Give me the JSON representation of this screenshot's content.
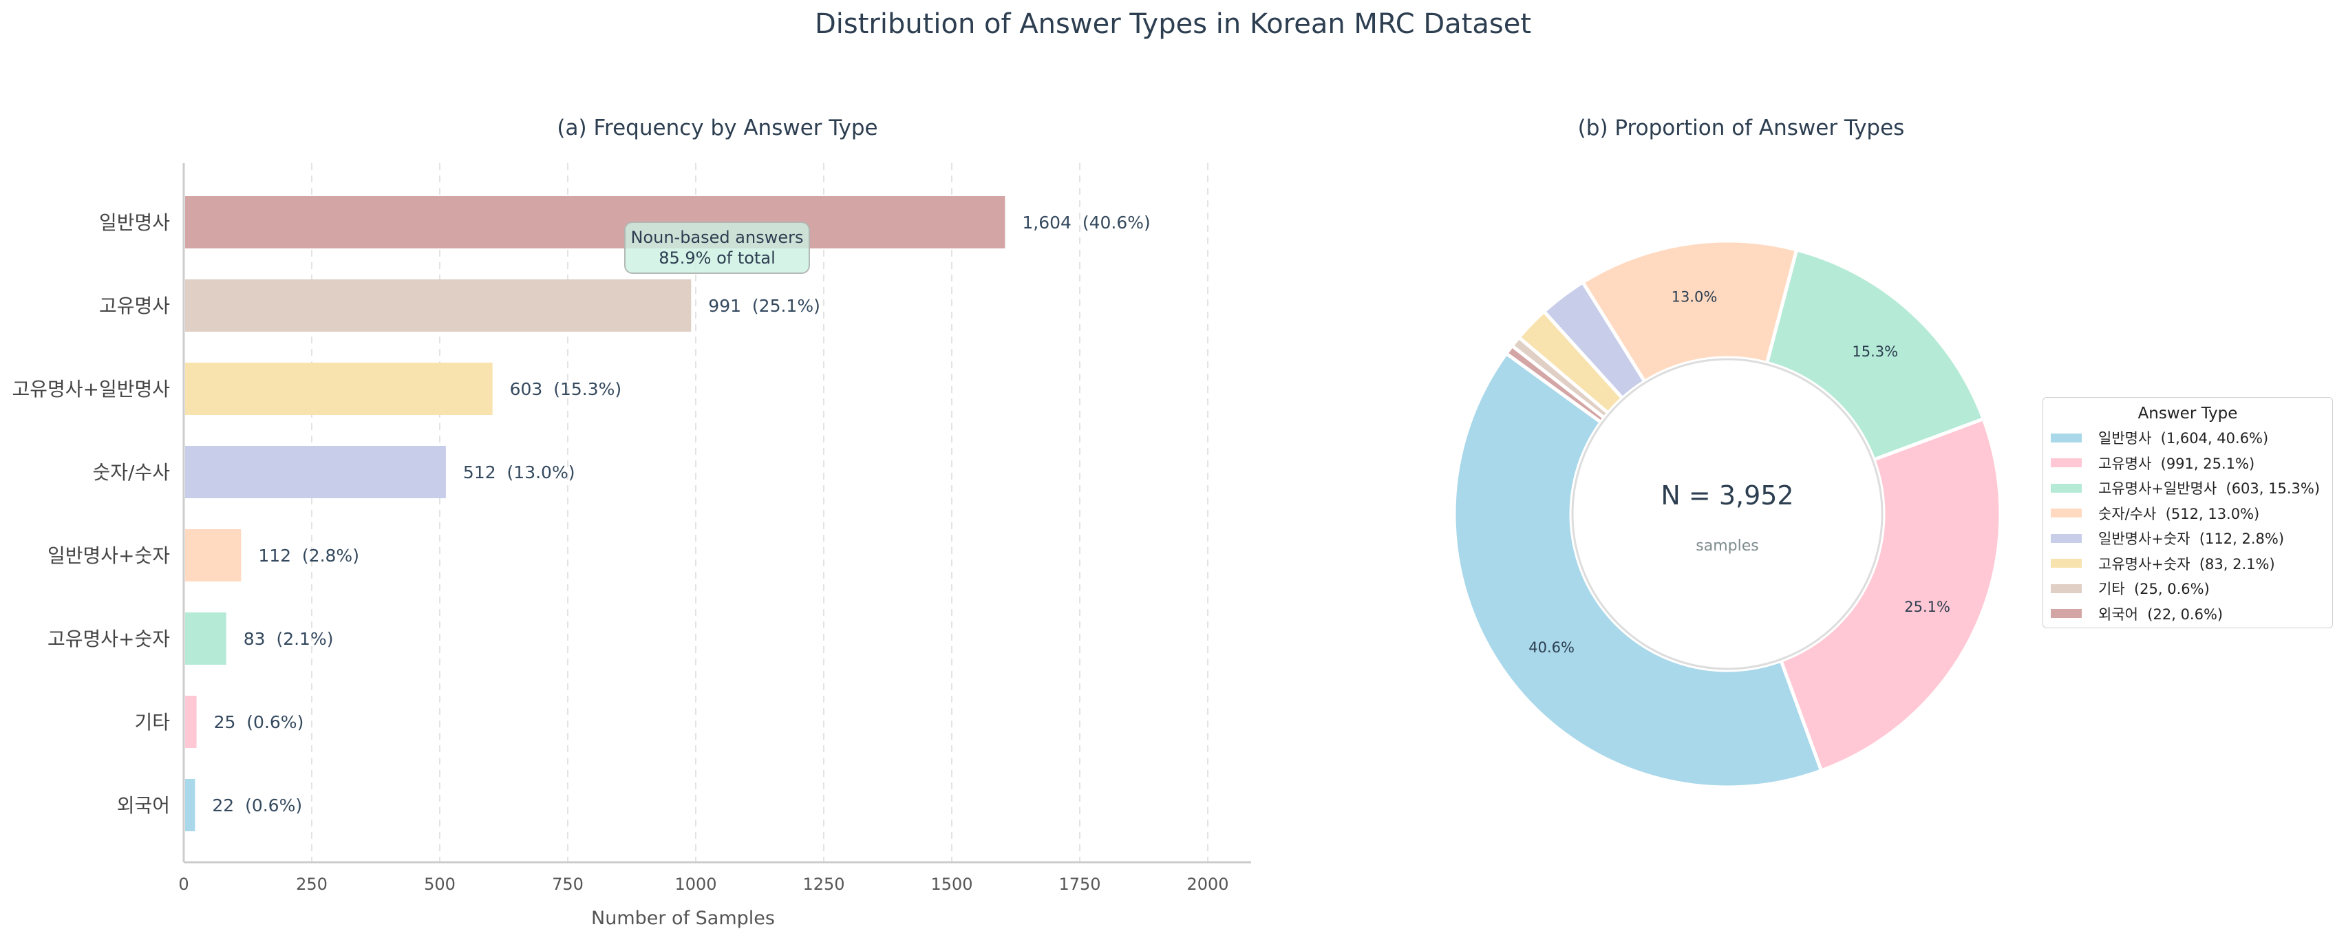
{
  "figure": {
    "title": "Distribution of Answer Types in Korean MRC Dataset"
  },
  "bar_panel": {
    "title": "(a) Frequency by Answer Type",
    "xlabel": "Number of Samples",
    "xticks": [
      "0",
      "250",
      "500",
      "750",
      "1000",
      "1250",
      "1500",
      "1750",
      "2000"
    ],
    "bars": [
      {
        "label": "일반명사",
        "value": 1604,
        "text": "1,604  (40.6%)",
        "color": "#D4A5A5"
      },
      {
        "label": "고유명사",
        "value": 991,
        "text": "991  (25.1%)",
        "color": "#E0CFC4"
      },
      {
        "label": "고유명사+일반명사",
        "value": 603,
        "text": "603  (15.3%)",
        "color": "#F8E2AE"
      },
      {
        "label": "숫자/수사",
        "value": 512,
        "text": "512  (13.0%)",
        "color": "#C8CEEA"
      },
      {
        "label": "일반명사+숫자",
        "value": 112,
        "text": "112  (2.8%)",
        "color": "#FFDAC1"
      },
      {
        "label": "고유명사+숫자",
        "value": 83,
        "text": "83  (2.1%)",
        "color": "#B5EAD7"
      },
      {
        "label": "기타",
        "value": 25,
        "text": "25  (0.6%)",
        "color": "#FFC8D4"
      },
      {
        "label": "외국어",
        "value": 22,
        "text": "22  (0.6%)",
        "color": "#A8D8EA"
      }
    ],
    "annotation": {
      "line1": "Noun-based answers",
      "line2": "85.9% of total"
    }
  },
  "pie_panel": {
    "title": "(b) Proportion of Answer Types",
    "center_value": "N = 3,952",
    "center_label": "samples",
    "legend_title": "Answer Type",
    "slices": [
      {
        "label": "일반명사",
        "value": 1604,
        "pct": "40.6%",
        "legend": "일반명사  (1,604, 40.6%)",
        "color": "#A8D8EA"
      },
      {
        "label": "고유명사",
        "value": 991,
        "pct": "25.1%",
        "legend": "고유명사  (991, 25.1%)",
        "color": "#FFC8D4"
      },
      {
        "label": "고유명사+일반명사",
        "value": 603,
        "pct": "15.3%",
        "legend": "고유명사+일반명사  (603, 15.3%)",
        "color": "#B5EAD7"
      },
      {
        "label": "숫자/수사",
        "value": 512,
        "pct": "13.0%",
        "legend": "숫자/수사  (512, 13.0%)",
        "color": "#FFDAC1"
      },
      {
        "label": "일반명사+숫자",
        "value": 112,
        "pct": "",
        "legend": "일반명사+숫자  (112, 2.8%)",
        "color": "#C8CEEA"
      },
      {
        "label": "고유명사+숫자",
        "value": 83,
        "pct": "",
        "legend": "고유명사+숫자  (83, 2.1%)",
        "color": "#F8E2AE"
      },
      {
        "label": "기타",
        "value": 25,
        "pct": "",
        "legend": "기타  (25, 0.6%)",
        "color": "#E0CFC4"
      },
      {
        "label": "외국어",
        "value": 22,
        "pct": "",
        "legend": "외국어  (22, 0.6%)",
        "color": "#D4A5A5"
      }
    ]
  },
  "chart_data": [
    {
      "type": "bar",
      "orientation": "horizontal",
      "title": "(a) Frequency by Answer Type",
      "xlabel": "Number of Samples",
      "ylabel": "",
      "categories": [
        "일반명사",
        "고유명사",
        "고유명사+일반명사",
        "숫자/수사",
        "일반명사+숫자",
        "고유명사+숫자",
        "기타",
        "외국어"
      ],
      "values": [
        1604,
        991,
        603,
        512,
        112,
        83,
        25,
        22
      ],
      "percentages": [
        40.6,
        25.1,
        15.3,
        13.0,
        2.8,
        2.1,
        0.6,
        0.6
      ],
      "xlim": [
        0,
        2085
      ],
      "xticks": [
        0,
        250,
        500,
        750,
        1000,
        1250,
        1500,
        1750,
        2000
      ],
      "grid": "x, dashed",
      "annotations": [
        "Noun-based answers 85.9% of total"
      ]
    },
    {
      "type": "pie",
      "variant": "donut",
      "title": "(b) Proportion of Answer Types",
      "categories": [
        "일반명사",
        "고유명사",
        "고유명사+일반명사",
        "숫자/수사",
        "일반명사+숫자",
        "고유명사+숫자",
        "기타",
        "외국어"
      ],
      "values": [
        1604,
        991,
        603,
        512,
        112,
        83,
        25,
        22
      ],
      "percentages": [
        40.6,
        25.1,
        15.3,
        13.0,
        2.8,
        2.1,
        0.6,
        0.6
      ],
      "center_text": "N = 3,952 samples",
      "legend_title": "Answer Type",
      "legend_position": "right"
    }
  ]
}
